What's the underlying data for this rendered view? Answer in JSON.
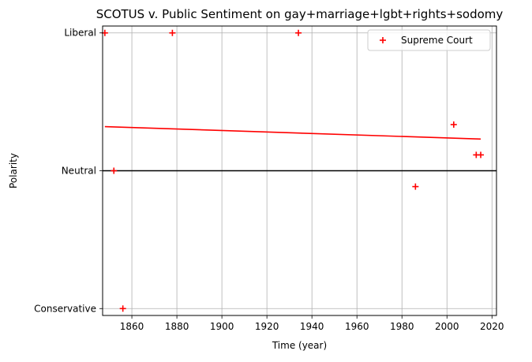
{
  "chart_data": {
    "type": "scatter",
    "title": "SCOTUS v. Public Sentiment on gay+marriage+lgbt+rights+sodomy",
    "xlabel": "Time (year)",
    "ylabel": "Polarity",
    "xlim": [
      1847,
      2022
    ],
    "ylim": [
      -1.05,
      1.05
    ],
    "x_ticks": [
      1860,
      1880,
      1900,
      1920,
      1940,
      1960,
      1980,
      2000,
      2020
    ],
    "y_ticks": [
      {
        "value": -1,
        "label": "Conservative"
      },
      {
        "value": 0,
        "label": "Neutral"
      },
      {
        "value": 1,
        "label": "Liberal"
      }
    ],
    "grid": true,
    "legend": {
      "position": "top-right",
      "entries": [
        {
          "label": "Supreme Court",
          "color": "#ff0000",
          "marker": "plus"
        }
      ]
    },
    "series": [
      {
        "name": "Supreme Court",
        "color": "#ff0000",
        "marker": "plus",
        "points": [
          {
            "x": 1848,
            "y": 1.0
          },
          {
            "x": 1852,
            "y": 0.0
          },
          {
            "x": 1856,
            "y": -1.0
          },
          {
            "x": 1878,
            "y": 1.0
          },
          {
            "x": 1934,
            "y": 1.0
          },
          {
            "x": 1986,
            "y": -0.115
          },
          {
            "x": 2003,
            "y": 0.335
          },
          {
            "x": 2013,
            "y": 0.115
          },
          {
            "x": 2015,
            "y": 0.115
          }
        ]
      }
    ],
    "trend_line": {
      "color": "#ff0000",
      "x": [
        1848,
        2015
      ],
      "y": [
        0.32,
        0.23
      ]
    },
    "neutral_line": {
      "color": "#000000",
      "y": 0.0
    }
  }
}
